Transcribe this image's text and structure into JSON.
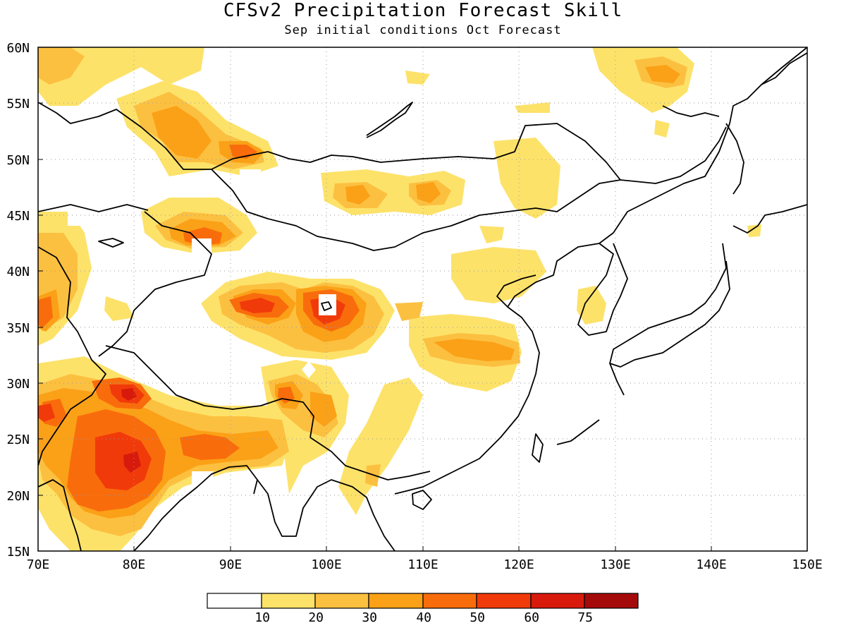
{
  "title": "CFSv2 Precipitation Forecast Skill",
  "subtitle": "Sep initial conditions  Oct Forecast",
  "map": {
    "lon_range": [
      70,
      150
    ],
    "lat_range": [
      15,
      60
    ],
    "lon_ticks": [
      "70E",
      "80E",
      "90E",
      "100E",
      "110E",
      "120E",
      "130E",
      "140E",
      "150E"
    ],
    "lat_ticks": [
      "15N",
      "20N",
      "25N",
      "30N",
      "35N",
      "40N",
      "45N",
      "50N",
      "55N",
      "60N"
    ],
    "grid": "dotted"
  },
  "colorbar": {
    "colors": [
      "#ffffff",
      "#fde26a",
      "#fcc040",
      "#fba117",
      "#f96c0c",
      "#f13a0a",
      "#d81a0c",
      "#a50a0a"
    ],
    "labels": [
      "10",
      "20",
      "30",
      "40",
      "50",
      "60",
      "75"
    ]
  },
  "contour_levels": {
    "l1": "#fde26a",
    "l2": "#fcc040",
    "l3": "#fba117",
    "l4": "#f96c0c",
    "l5": "#f13a0a",
    "l6": "#d81a0c"
  }
}
